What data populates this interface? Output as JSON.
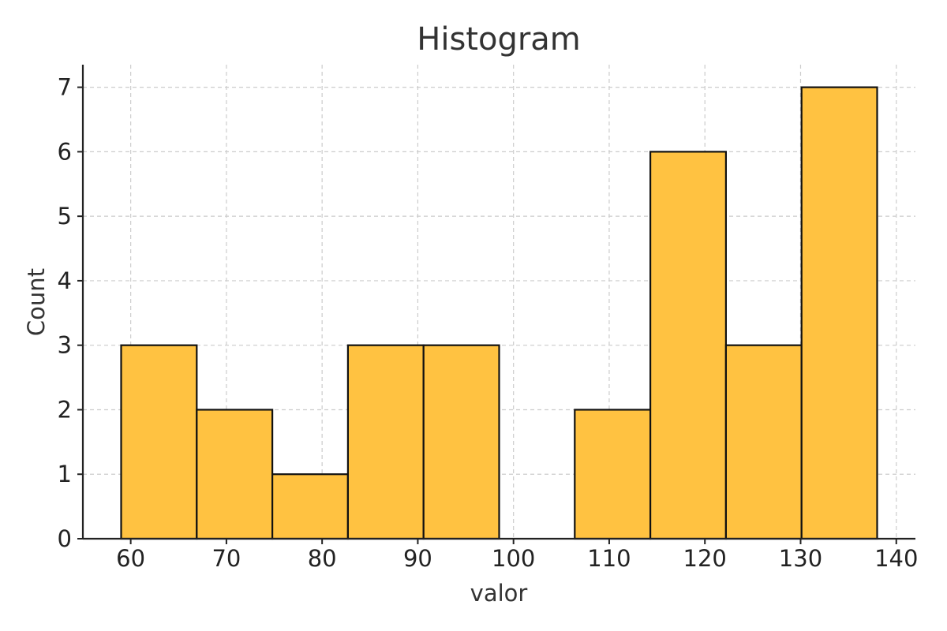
{
  "chart_data": {
    "type": "bar",
    "title": "Histogram",
    "xlabel": "valor",
    "ylabel": "Count",
    "bin_edges": [
      59.0,
      66.9,
      74.8,
      82.7,
      90.6,
      98.5,
      106.4,
      114.3,
      122.2,
      130.1,
      138.0
    ],
    "values": [
      3,
      2,
      1,
      3,
      3,
      0,
      2,
      6,
      3,
      7
    ],
    "xlim": [
      55,
      142
    ],
    "ylim": [
      0,
      7.35
    ],
    "xticks": [
      60,
      70,
      80,
      90,
      100,
      110,
      120,
      130,
      140
    ],
    "yticks": [
      0,
      1,
      2,
      3,
      4,
      5,
      6,
      7
    ],
    "grid": true,
    "bar_color": "#FFC241",
    "edge_color": "#111111"
  }
}
